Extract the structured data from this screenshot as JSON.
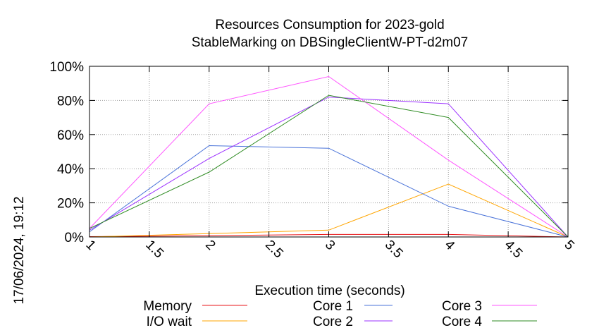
{
  "chart_data": {
    "type": "line",
    "title_line1": "Resources Consumption for 2023-gold",
    "title_line2": "StableMarking on DBSingleClientW-PT-d2m07",
    "xlabel": "Execution time (seconds)",
    "ylabel": "",
    "side_label": "17/06/2024, 19:12",
    "xlim": [
      1,
      5
    ],
    "ylim": [
      0,
      100
    ],
    "x_ticks": [
      1,
      1.5,
      2,
      2.5,
      3,
      3.5,
      4,
      4.5,
      5
    ],
    "x_tick_labels": [
      "1",
      "1.5",
      "2",
      "2.5",
      "3",
      "3.5",
      "4",
      "4.5",
      "5"
    ],
    "y_ticks": [
      0,
      20,
      40,
      60,
      80,
      100
    ],
    "y_tick_labels": [
      "0%",
      "20%",
      "40%",
      "60%",
      "80%",
      "100%"
    ],
    "grid": true,
    "legend_position": "bottom",
    "x": [
      1,
      2,
      3,
      4,
      5
    ],
    "series": [
      {
        "name": "Memory",
        "color": "#e8161a",
        "values": [
          0.2,
          0.8,
          1.5,
          1.5,
          0
        ]
      },
      {
        "name": "I/O wait",
        "color": "#ffa500",
        "values": [
          0,
          2,
          4,
          31,
          0
        ]
      },
      {
        "name": "Core 1",
        "color": "#4a73d9",
        "values": [
          3,
          53.5,
          52,
          18,
          0
        ]
      },
      {
        "name": "Core 2",
        "color": "#9b30ff",
        "values": [
          4,
          46,
          82,
          78,
          0
        ]
      },
      {
        "name": "Core 3",
        "color": "#ff55ff",
        "values": [
          5,
          78,
          94,
          45,
          0
        ]
      },
      {
        "name": "Core 4",
        "color": "#2e8b22",
        "values": [
          5,
          38,
          83,
          70,
          0
        ]
      }
    ],
    "legend_order": [
      "Memory",
      "I/O wait",
      "Core 1",
      "Core 2",
      "Core 3",
      "Core 4"
    ]
  }
}
